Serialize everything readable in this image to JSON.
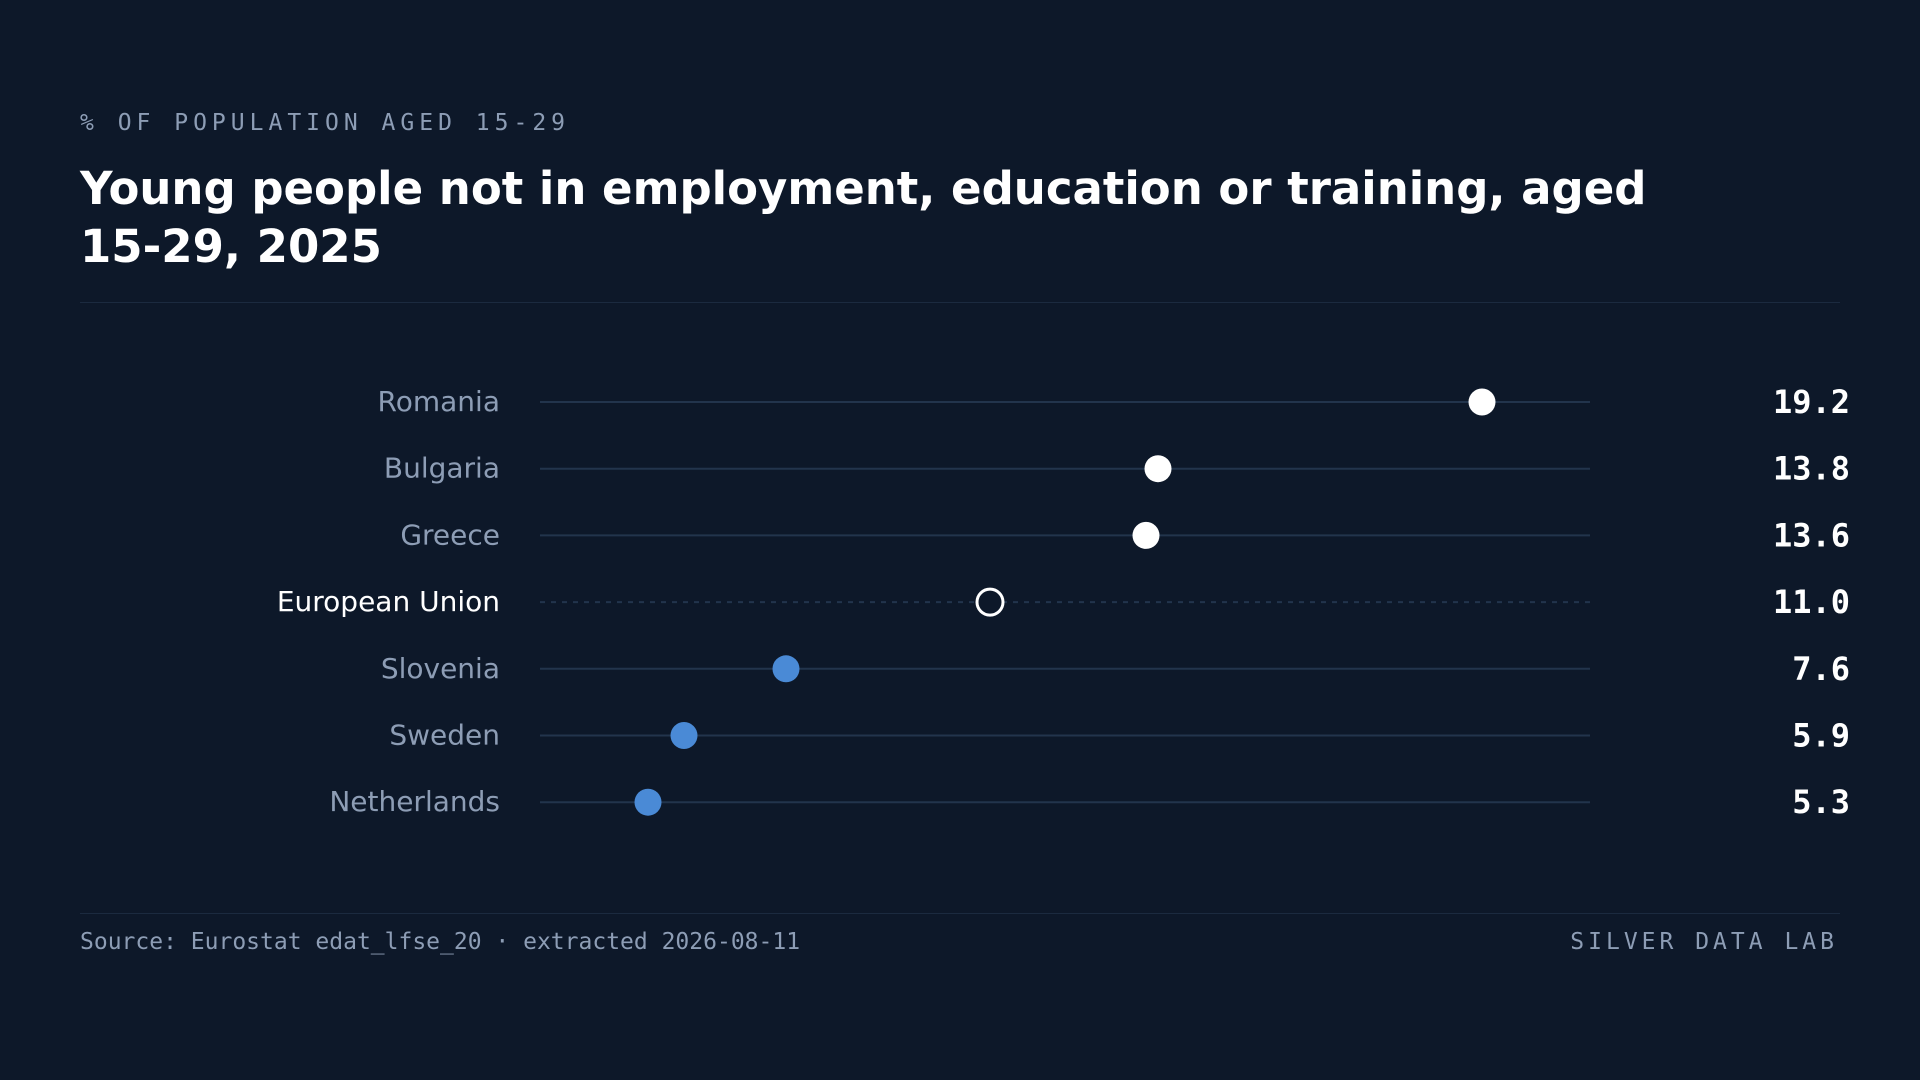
{
  "header": {
    "eyebrow": "% OF POPULATION AGED 15-29",
    "title": "Young people not in employment, education or training, aged 15-29, 2025"
  },
  "footer": {
    "source": "Source: Eurostat edat_lfse_20 · extracted 2026-08-11",
    "brand": "SILVER DATA LAB"
  },
  "colors": {
    "background": "#0d1829",
    "track": "#22344c",
    "label": "#8d9db5",
    "label_highlight": "#ffffff",
    "dot_high": "#ffffff",
    "dot_low": "#4a8ad6",
    "value": "#ffffff"
  },
  "chart_data": {
    "type": "dot",
    "title": "Young people not in employment, education or training, aged 15-29, 2025",
    "subtitle": "% OF POPULATION AGED 15-29",
    "xlim": [
      3.5,
      21
    ],
    "grid": false,
    "legend": "none",
    "series": [
      {
        "values": [
          19.2,
          13.8,
          13.6,
          11.0,
          7.6,
          5.9,
          5.3
        ],
        "labels": [
          "19.2",
          "13.8",
          "13.6",
          "11.0",
          "7.6",
          "5.9",
          "5.3"
        ]
      }
    ],
    "categories": [
      "Romania",
      "Bulgaria",
      "Greece",
      "European Union",
      "Slovenia",
      "Sweden",
      "Netherlands"
    ],
    "styles": [
      "high",
      "high",
      "high",
      "reference",
      "low",
      "low",
      "low"
    ]
  }
}
